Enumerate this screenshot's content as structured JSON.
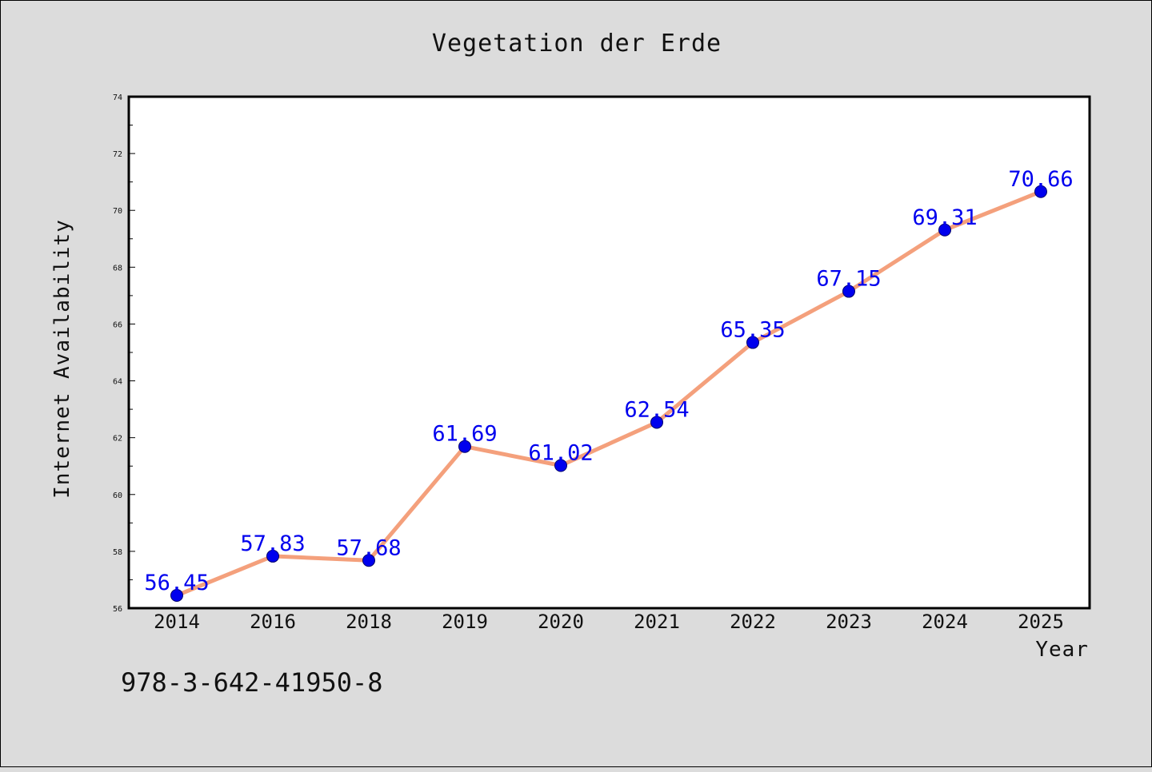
{
  "chart_data": {
    "type": "line",
    "title": "Vegetation der Erde",
    "xlabel": "Year",
    "ylabel": "Internet Availability",
    "categories": [
      "2014",
      "2016",
      "2018",
      "2019",
      "2020",
      "2021",
      "2022",
      "2023",
      "2024",
      "2025"
    ],
    "values": [
      56.45,
      57.83,
      57.68,
      61.69,
      61.02,
      62.54,
      65.35,
      67.15,
      69.31,
      70.66
    ],
    "value_labels": [
      "56.45",
      "57.83",
      "57.68",
      "61.69",
      "61.02",
      "62.54",
      "65.35",
      "67.15",
      "69.31",
      "70.66"
    ],
    "ylim": [
      56,
      74
    ],
    "yticks": [
      56,
      58,
      60,
      62,
      64,
      66,
      68,
      70,
      72,
      74
    ],
    "grid": false,
    "legend": "none",
    "colors": {
      "line": "#f4a07c",
      "marker": "#0000ee",
      "label": "#0000ee"
    }
  },
  "footer_text": "978-3-642-41950-8"
}
